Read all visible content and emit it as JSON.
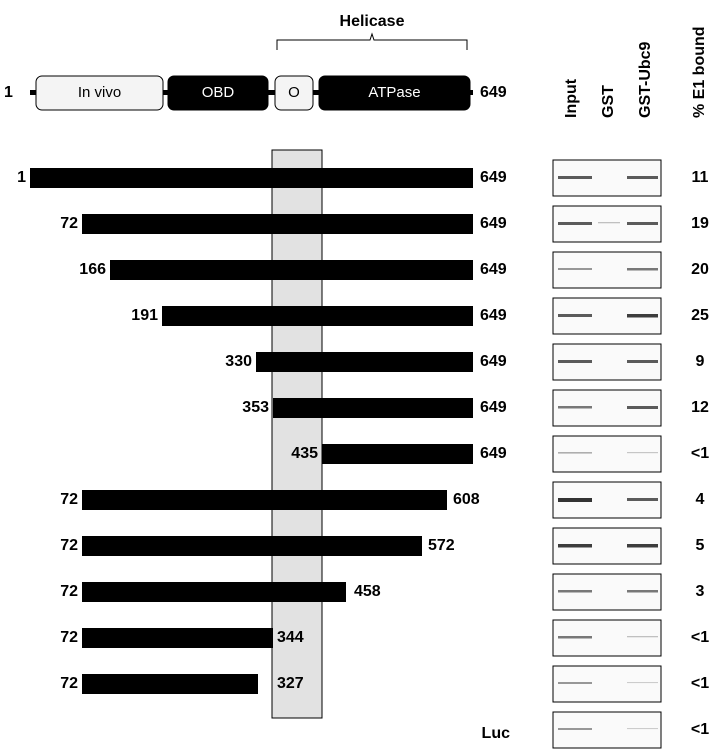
{
  "domain_map": {
    "region_label": "Helicase",
    "start": 1,
    "end": 649,
    "domains": [
      "In vivo",
      "OBD",
      "O",
      "ATPase"
    ]
  },
  "lanes": [
    "Input",
    "GST",
    "GST-Ubc9"
  ],
  "column_header": "% E1 bound",
  "constructs": [
    {
      "start": 1,
      "end": 649,
      "bound": 11
    },
    {
      "start": 72,
      "end": 649,
      "bound": 19
    },
    {
      "start": 166,
      "end": 649,
      "bound": 20
    },
    {
      "start": 191,
      "end": 649,
      "bound": 25
    },
    {
      "start": 330,
      "end": 649,
      "bound": 9
    },
    {
      "start": 353,
      "end": 649,
      "bound": 12
    },
    {
      "start": 435,
      "end": 649,
      "bound": "<1"
    },
    {
      "start": 72,
      "end": 608,
      "bound": 4
    },
    {
      "start": 72,
      "end": 572,
      "bound": 5
    },
    {
      "start": 72,
      "end": 458,
      "bound": 3
    },
    {
      "start": 72,
      "end": 344,
      "bound": "<1"
    },
    {
      "start": 72,
      "end": 327,
      "bound": "<1"
    }
  ],
  "control": {
    "label": "Luc",
    "bound": "<1"
  }
}
